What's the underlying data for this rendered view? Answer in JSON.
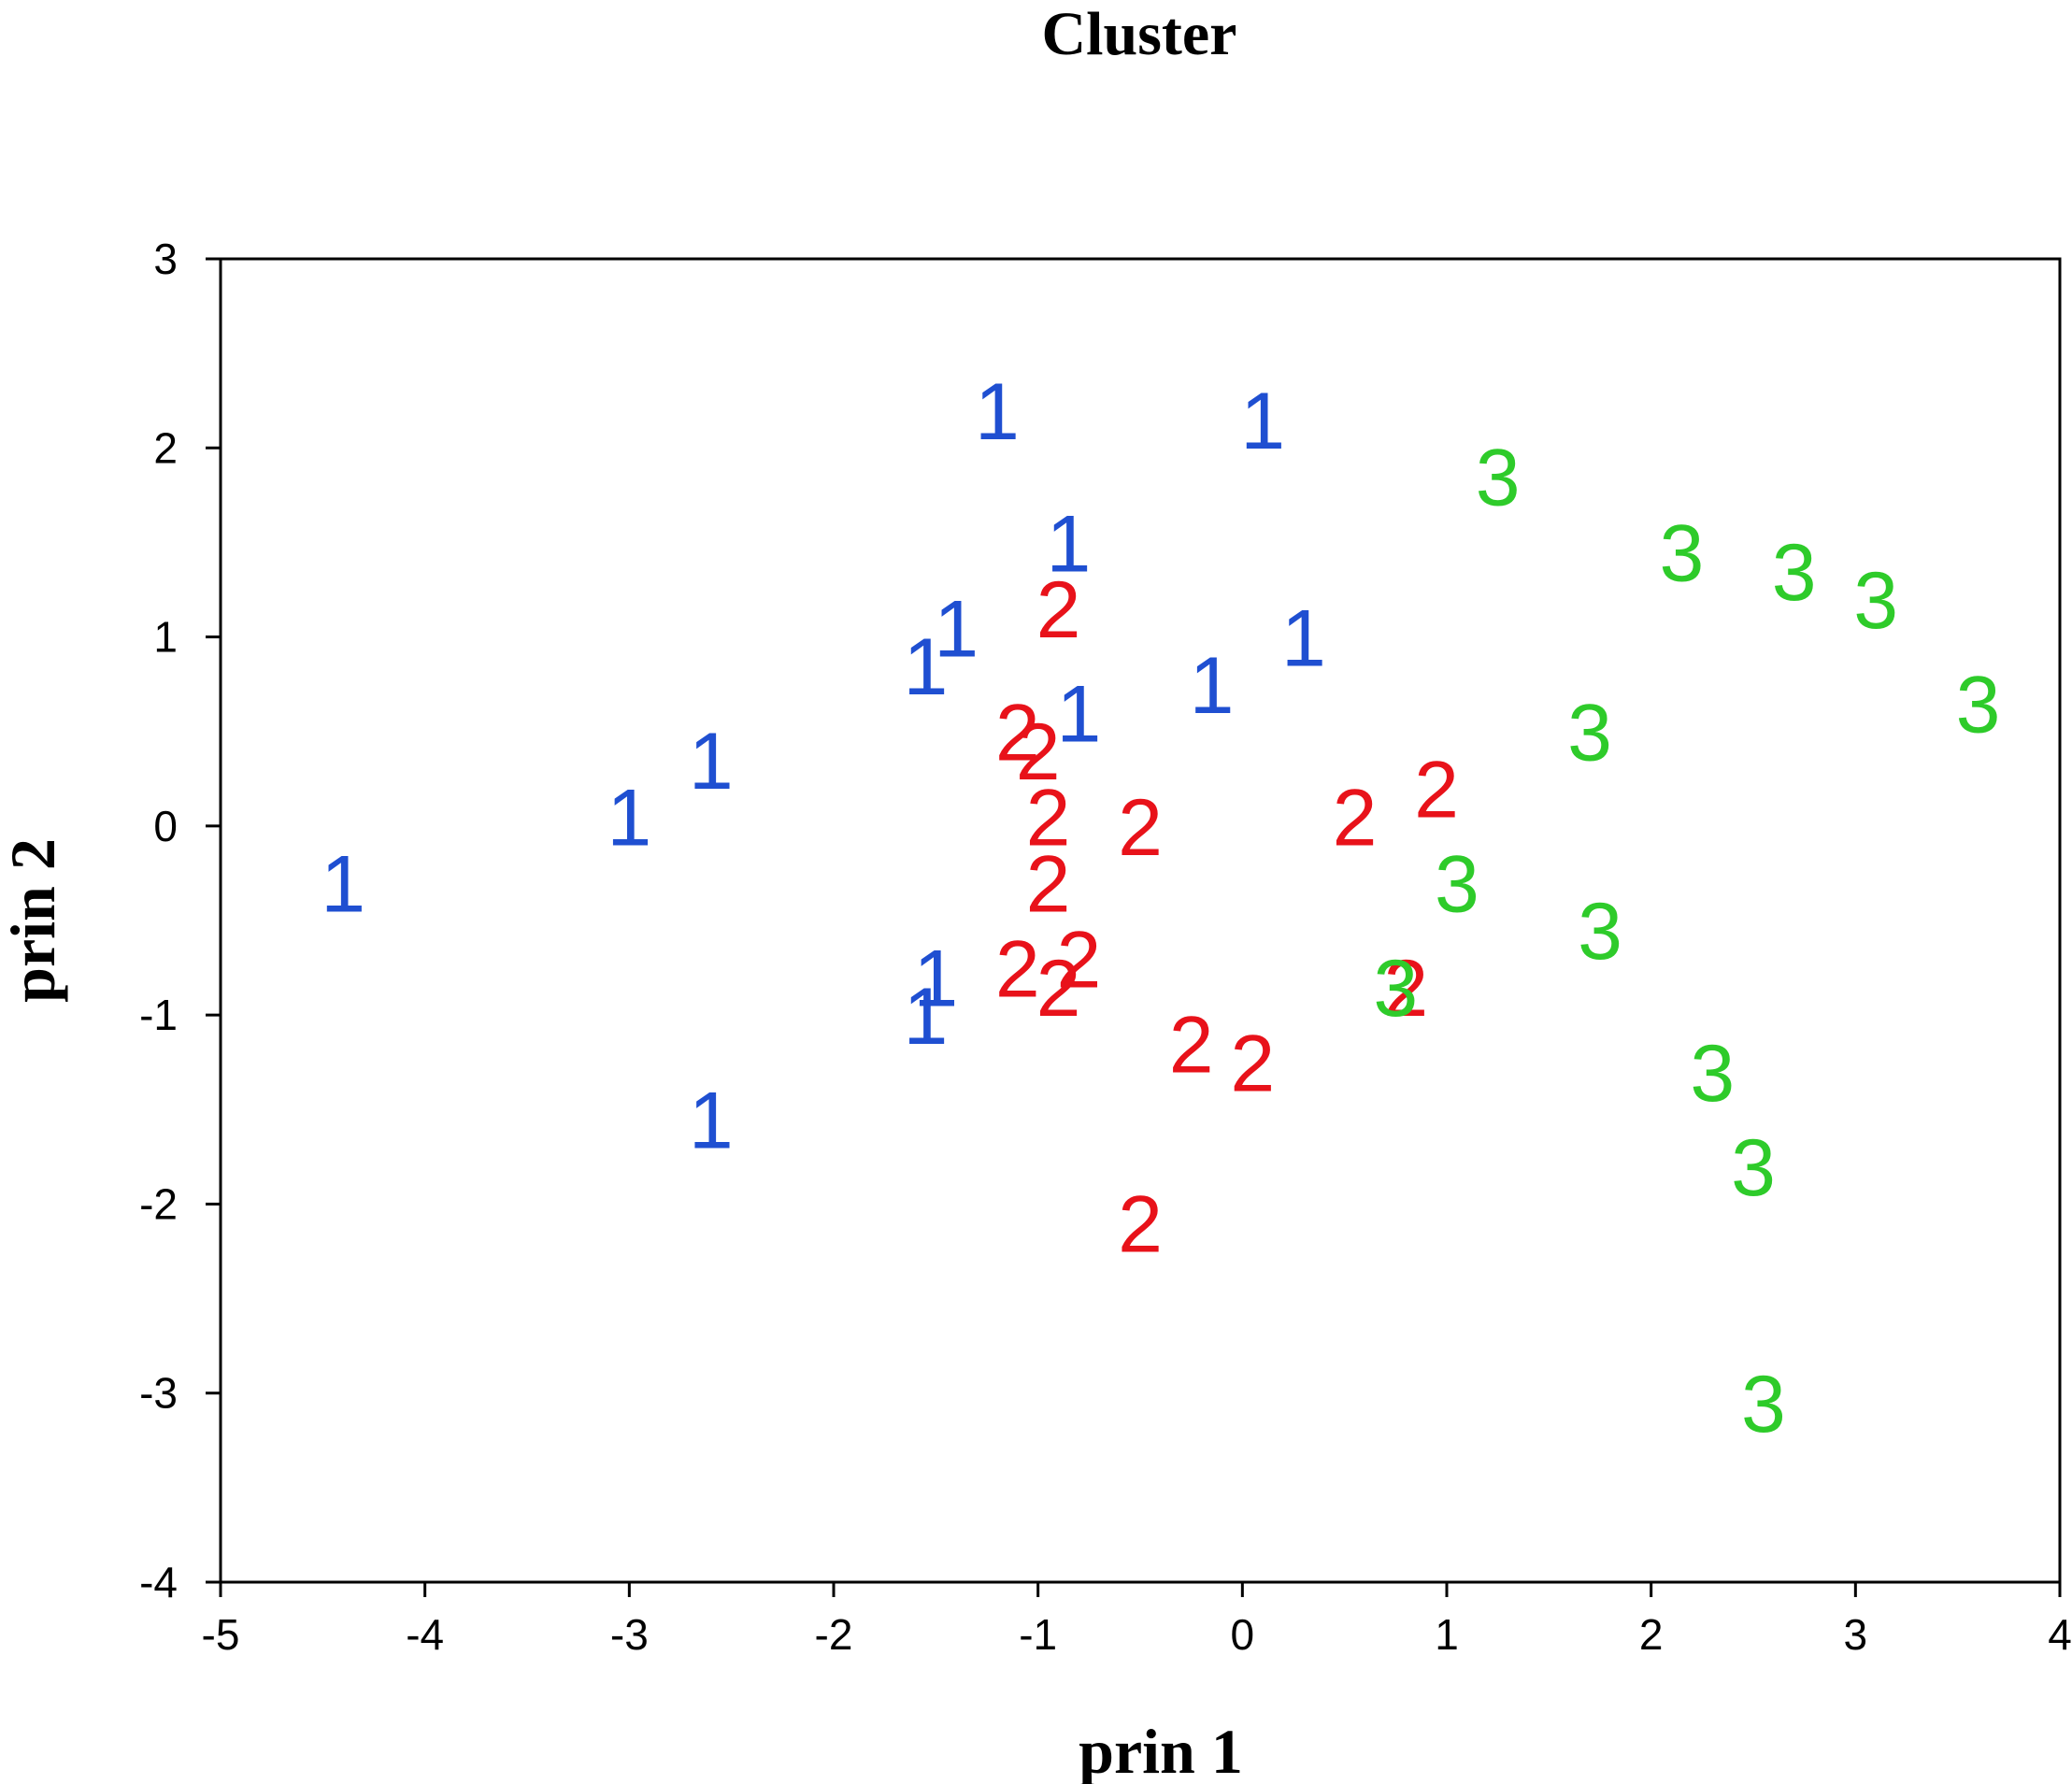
{
  "chart_data": {
    "type": "scatter",
    "title": "Cluster",
    "xlabel": "prin 1",
    "ylabel": "prin 2",
    "xlim": [
      -5,
      4
    ],
    "ylim": [
      -4,
      3
    ],
    "xticks": [
      "-5",
      "-4",
      "-3",
      "-2",
      "-1",
      "0",
      "1",
      "2",
      "3",
      "4"
    ],
    "yticks": [
      "3",
      "2",
      "1",
      "0",
      "-1",
      "-2",
      "-3",
      "-4"
    ],
    "grid": false,
    "legend": false,
    "marker": "cluster-number",
    "series": [
      {
        "label": "1",
        "color": "#1f4fd1",
        "points": [
          {
            "x": -1.2,
            "y": 2.2
          },
          {
            "x": 0.1,
            "y": 2.15
          },
          {
            "x": -0.85,
            "y": 1.5
          },
          {
            "x": -1.4,
            "y": 1.05
          },
          {
            "x": -1.55,
            "y": 0.85
          },
          {
            "x": 0.3,
            "y": 1.0
          },
          {
            "x": -0.15,
            "y": 0.75
          },
          {
            "x": -0.8,
            "y": 0.6
          },
          {
            "x": -2.6,
            "y": 0.35
          },
          {
            "x": -3.0,
            "y": 0.05
          },
          {
            "x": -4.4,
            "y": -0.3
          },
          {
            "x": -1.5,
            "y": -0.8
          },
          {
            "x": -1.55,
            "y": -1.0
          },
          {
            "x": -2.6,
            "y": -1.55
          }
        ]
      },
      {
        "label": "2",
        "color": "#e8121a",
        "points": [
          {
            "x": -0.9,
            "y": 1.15
          },
          {
            "x": -1.1,
            "y": 0.5
          },
          {
            "x": -1.0,
            "y": 0.4
          },
          {
            "x": -0.95,
            "y": 0.05
          },
          {
            "x": -0.5,
            "y": 0.0
          },
          {
            "x": 0.55,
            "y": 0.05
          },
          {
            "x": 0.95,
            "y": 0.2
          },
          {
            "x": -0.95,
            "y": -0.3
          },
          {
            "x": -1.1,
            "y": -0.75
          },
          {
            "x": -0.8,
            "y": -0.7
          },
          {
            "x": -0.9,
            "y": -0.85
          },
          {
            "x": 0.8,
            "y": -0.85
          },
          {
            "x": -0.25,
            "y": -1.15
          },
          {
            "x": 0.05,
            "y": -1.25
          },
          {
            "x": -0.5,
            "y": -2.1
          }
        ]
      },
      {
        "label": "3",
        "color": "#2ecb2a",
        "points": [
          {
            "x": 1.25,
            "y": 1.85
          },
          {
            "x": 2.15,
            "y": 1.45
          },
          {
            "x": 2.7,
            "y": 1.35
          },
          {
            "x": 3.1,
            "y": 1.2
          },
          {
            "x": 3.6,
            "y": 0.65
          },
          {
            "x": 1.7,
            "y": 0.5
          },
          {
            "x": 1.05,
            "y": -0.3
          },
          {
            "x": 1.75,
            "y": -0.55
          },
          {
            "x": 0.75,
            "y": -0.85
          },
          {
            "x": 2.3,
            "y": -1.3
          },
          {
            "x": 2.5,
            "y": -1.8
          },
          {
            "x": 2.55,
            "y": -3.05
          }
        ]
      }
    ]
  }
}
